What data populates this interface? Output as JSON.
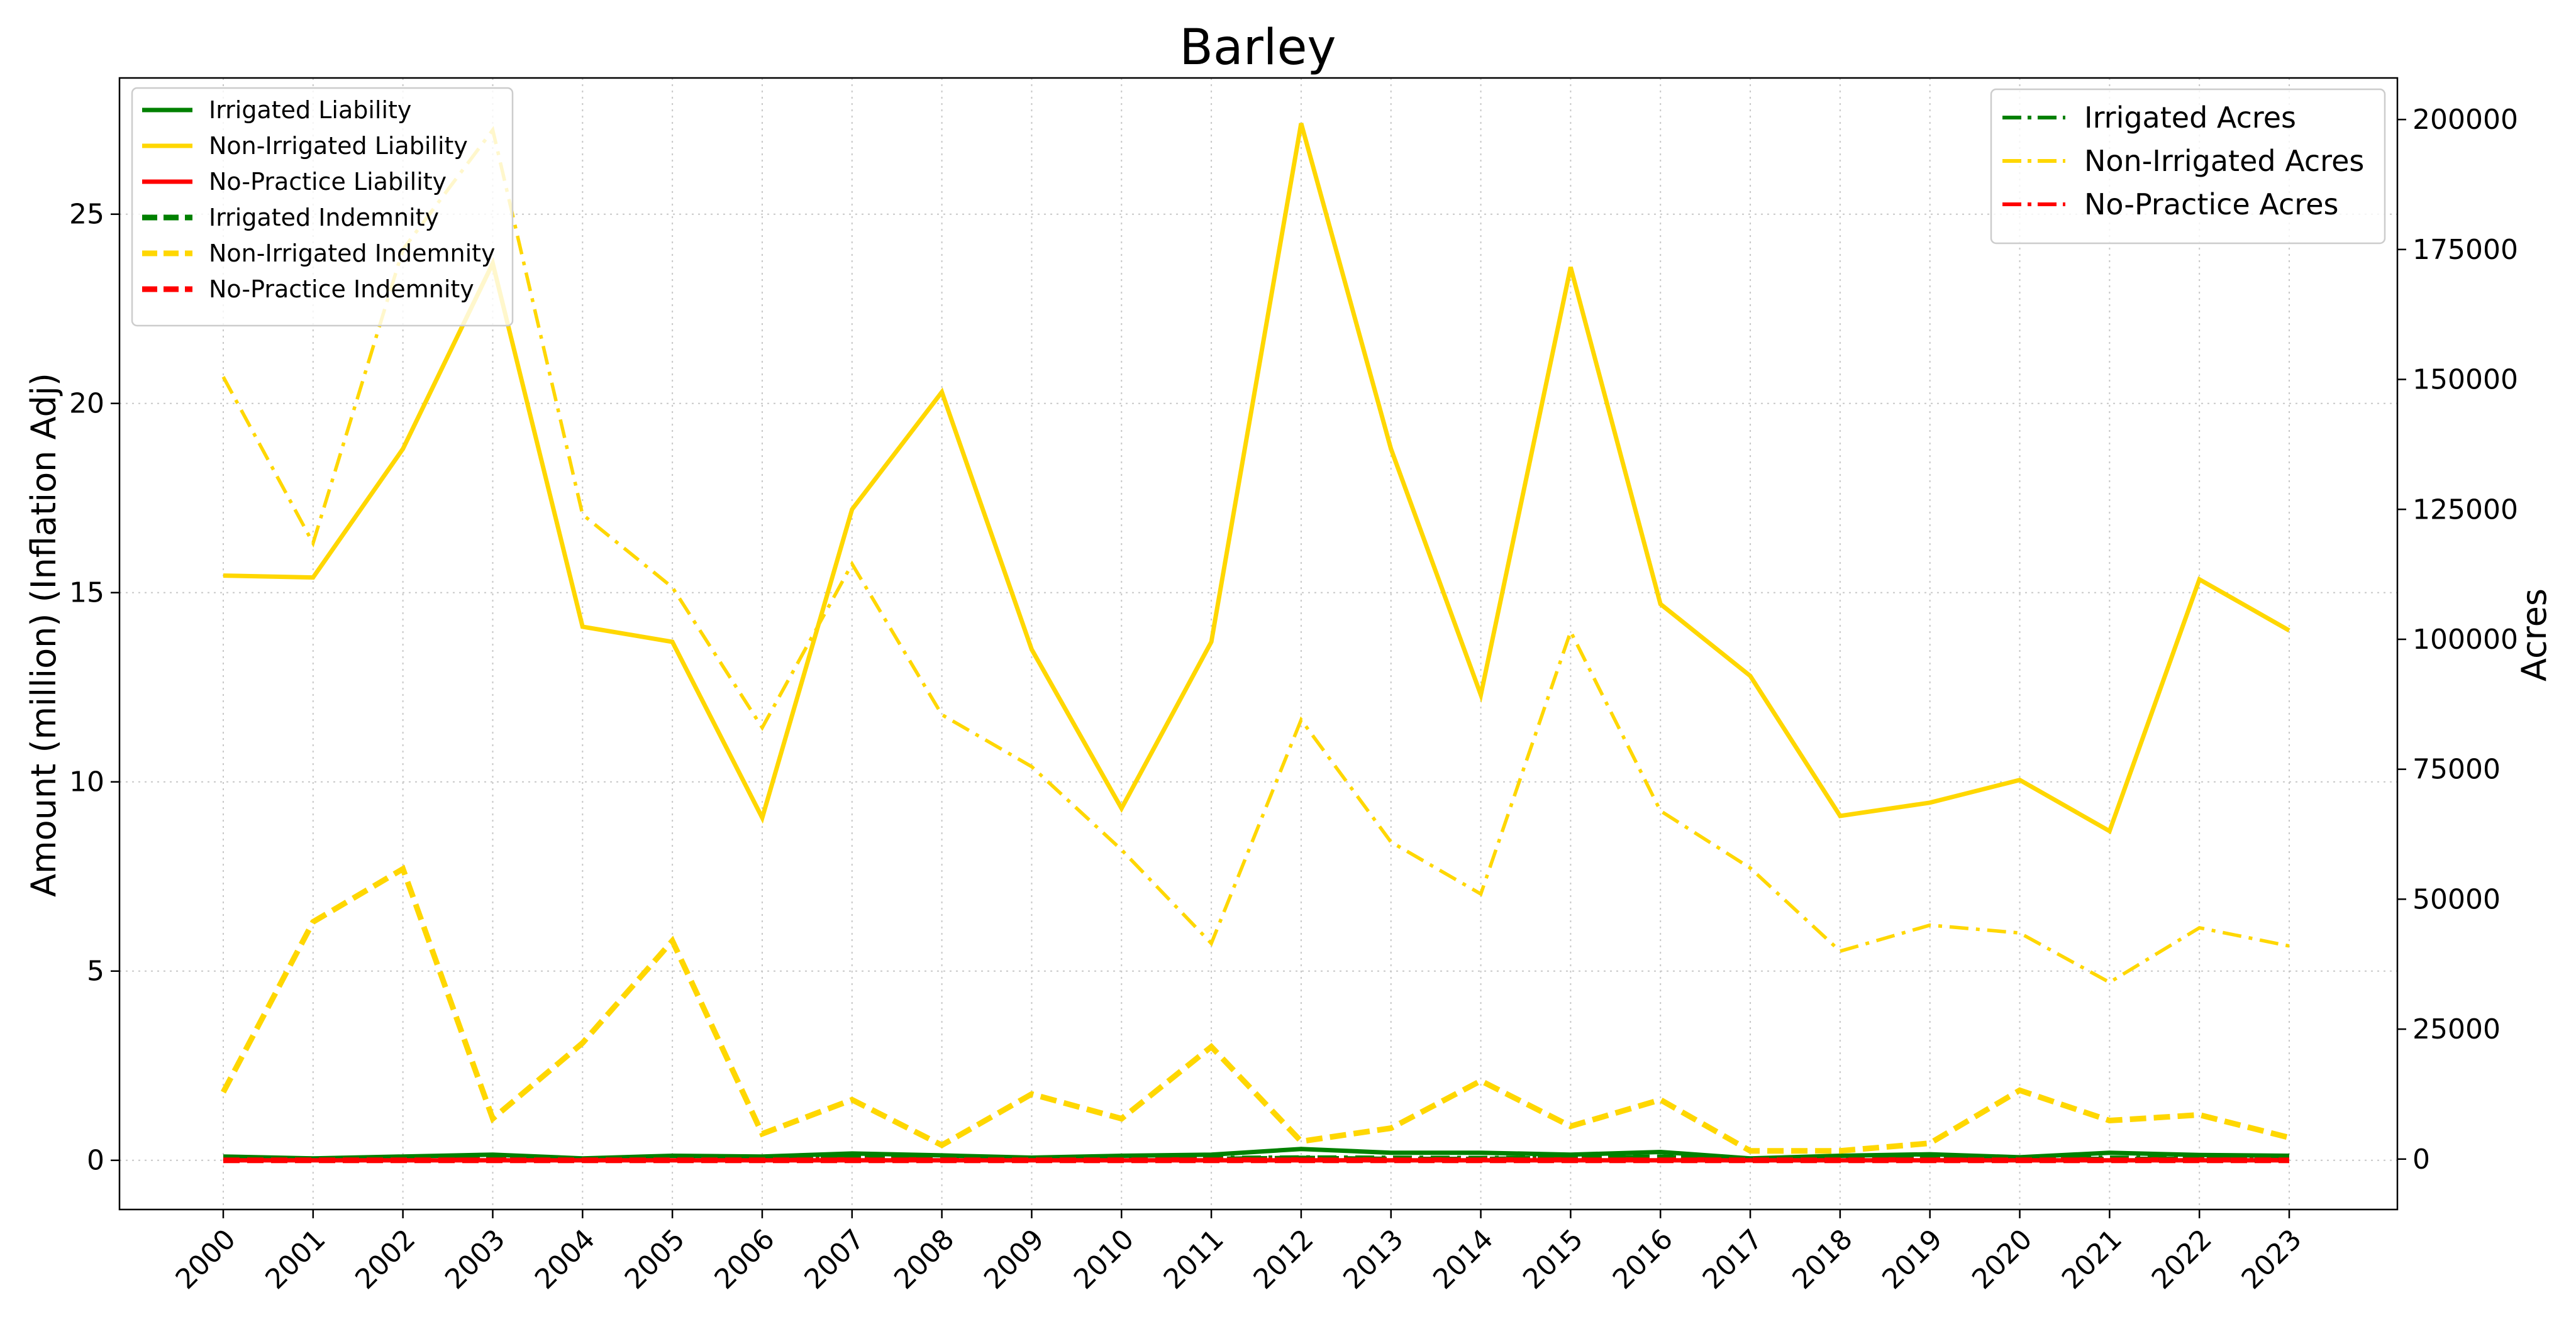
{
  "chart_data": {
    "type": "line",
    "title": "Barley",
    "xlabel": "",
    "ylabel": "Amount (million) (Inflation Adj)",
    "y2label": "Acres",
    "ylim": [
      -1.3,
      28.6
    ],
    "y2lim": [
      -9700,
      208000
    ],
    "yticks": [
      0,
      5,
      10,
      15,
      20,
      25
    ],
    "y2ticks": [
      0,
      25000,
      50000,
      75000,
      100000,
      125000,
      150000,
      175000,
      200000
    ],
    "grid": true,
    "categories": [
      "2000",
      "2001",
      "2002",
      "2003",
      "2004",
      "2005",
      "2006",
      "2007",
      "2008",
      "2009",
      "2010",
      "2011",
      "2012",
      "2013",
      "2014",
      "2015",
      "2016",
      "2017",
      "2018",
      "2019",
      "2020",
      "2021",
      "2022",
      "2023"
    ],
    "series": [
      {
        "name": "Irrigated Liability",
        "axis": "left",
        "color": "#008000",
        "style": "solid",
        "values": [
          0.1,
          0.05,
          0.1,
          0.15,
          0.05,
          0.12,
          0.1,
          0.18,
          0.13,
          0.07,
          0.12,
          0.15,
          0.3,
          0.2,
          0.2,
          0.15,
          0.22,
          0.05,
          0.12,
          0.16,
          0.08,
          0.2,
          0.14,
          0.12
        ]
      },
      {
        "name": "Non-Irrigated Liability",
        "axis": "left",
        "color": "#FFD700",
        "style": "solid",
        "values": [
          15.45,
          15.4,
          18.8,
          23.7,
          14.1,
          13.7,
          9.05,
          17.2,
          20.3,
          13.5,
          9.3,
          13.7,
          27.4,
          18.8,
          12.3,
          23.6,
          14.7,
          12.8,
          9.1,
          9.45,
          10.05,
          8.7,
          15.35,
          14.0
        ]
      },
      {
        "name": "No-Practice Liability",
        "axis": "left",
        "color": "#FF0000",
        "style": "solid",
        "values": [
          0,
          0,
          0,
          0,
          0,
          0,
          0,
          0,
          0,
          0,
          0,
          0,
          0,
          0,
          0,
          0,
          0,
          0,
          0,
          0,
          0,
          0,
          0,
          0
        ]
      },
      {
        "name": "Irrigated Indemnity",
        "axis": "left",
        "color": "#008000",
        "style": "dashed",
        "values": [
          0.02,
          0.02,
          0.05,
          0.05,
          0.02,
          0.02,
          0.02,
          0.05,
          0.02,
          0.02,
          0.02,
          0.02,
          0.05,
          0.02,
          0.02,
          0.05,
          0.08,
          0.02,
          0.02,
          0.05,
          0.02,
          0.02,
          0.02,
          0.02
        ]
      },
      {
        "name": "Non-Irrigated Indemnity",
        "axis": "left",
        "color": "#FFD700",
        "style": "dashed",
        "values": [
          1.8,
          6.3,
          7.7,
          1.1,
          3.1,
          5.8,
          0.7,
          1.6,
          0.4,
          1.75,
          1.1,
          3.0,
          0.5,
          0.85,
          2.1,
          0.9,
          1.6,
          0.25,
          0.25,
          0.45,
          1.85,
          1.05,
          1.2,
          0.6
        ]
      },
      {
        "name": "No-Practice Indemnity",
        "axis": "left",
        "color": "#FF0000",
        "style": "dashed",
        "values": [
          0,
          0,
          0,
          0,
          0,
          0,
          0,
          0,
          0,
          0,
          0,
          0,
          0,
          0,
          0,
          0,
          0,
          0,
          0,
          0,
          0,
          0,
          0,
          0
        ]
      },
      {
        "name": "Irrigated Acres",
        "axis": "right",
        "color": "#008000",
        "style": "dashdot",
        "values": [
          300,
          200,
          250,
          300,
          200,
          250,
          250,
          350,
          250,
          200,
          250,
          300,
          400,
          350,
          300,
          350,
          450,
          200,
          250,
          300,
          200,
          350,
          250,
          250
        ]
      },
      {
        "name": "Non-Irrigated Acres",
        "axis": "right",
        "color": "#FFD700",
        "style": "dashdot",
        "values": [
          150500,
          118500,
          175000,
          198000,
          124000,
          110000,
          83000,
          114500,
          85500,
          75500,
          59500,
          41500,
          84500,
          61000,
          51000,
          101500,
          67000,
          56000,
          40000,
          45000,
          43500,
          34000,
          44500,
          41000
        ]
      },
      {
        "name": "No-Practice Acres",
        "axis": "right",
        "color": "#FF0000",
        "style": "dashdot",
        "values": [
          0,
          0,
          0,
          0,
          0,
          0,
          0,
          0,
          0,
          0,
          0,
          0,
          0,
          0,
          0,
          0,
          0,
          0,
          0,
          0,
          0,
          0,
          0,
          0
        ]
      }
    ],
    "legend_left": [
      "Irrigated Liability",
      "Non-Irrigated Liability",
      "No-Practice Liability",
      "Irrigated Indemnity",
      "Non-Irrigated Indemnity",
      "No-Practice Indemnity"
    ],
    "legend_right": [
      "Irrigated Acres",
      "Non-Irrigated Acres",
      "No-Practice Acres"
    ]
  }
}
